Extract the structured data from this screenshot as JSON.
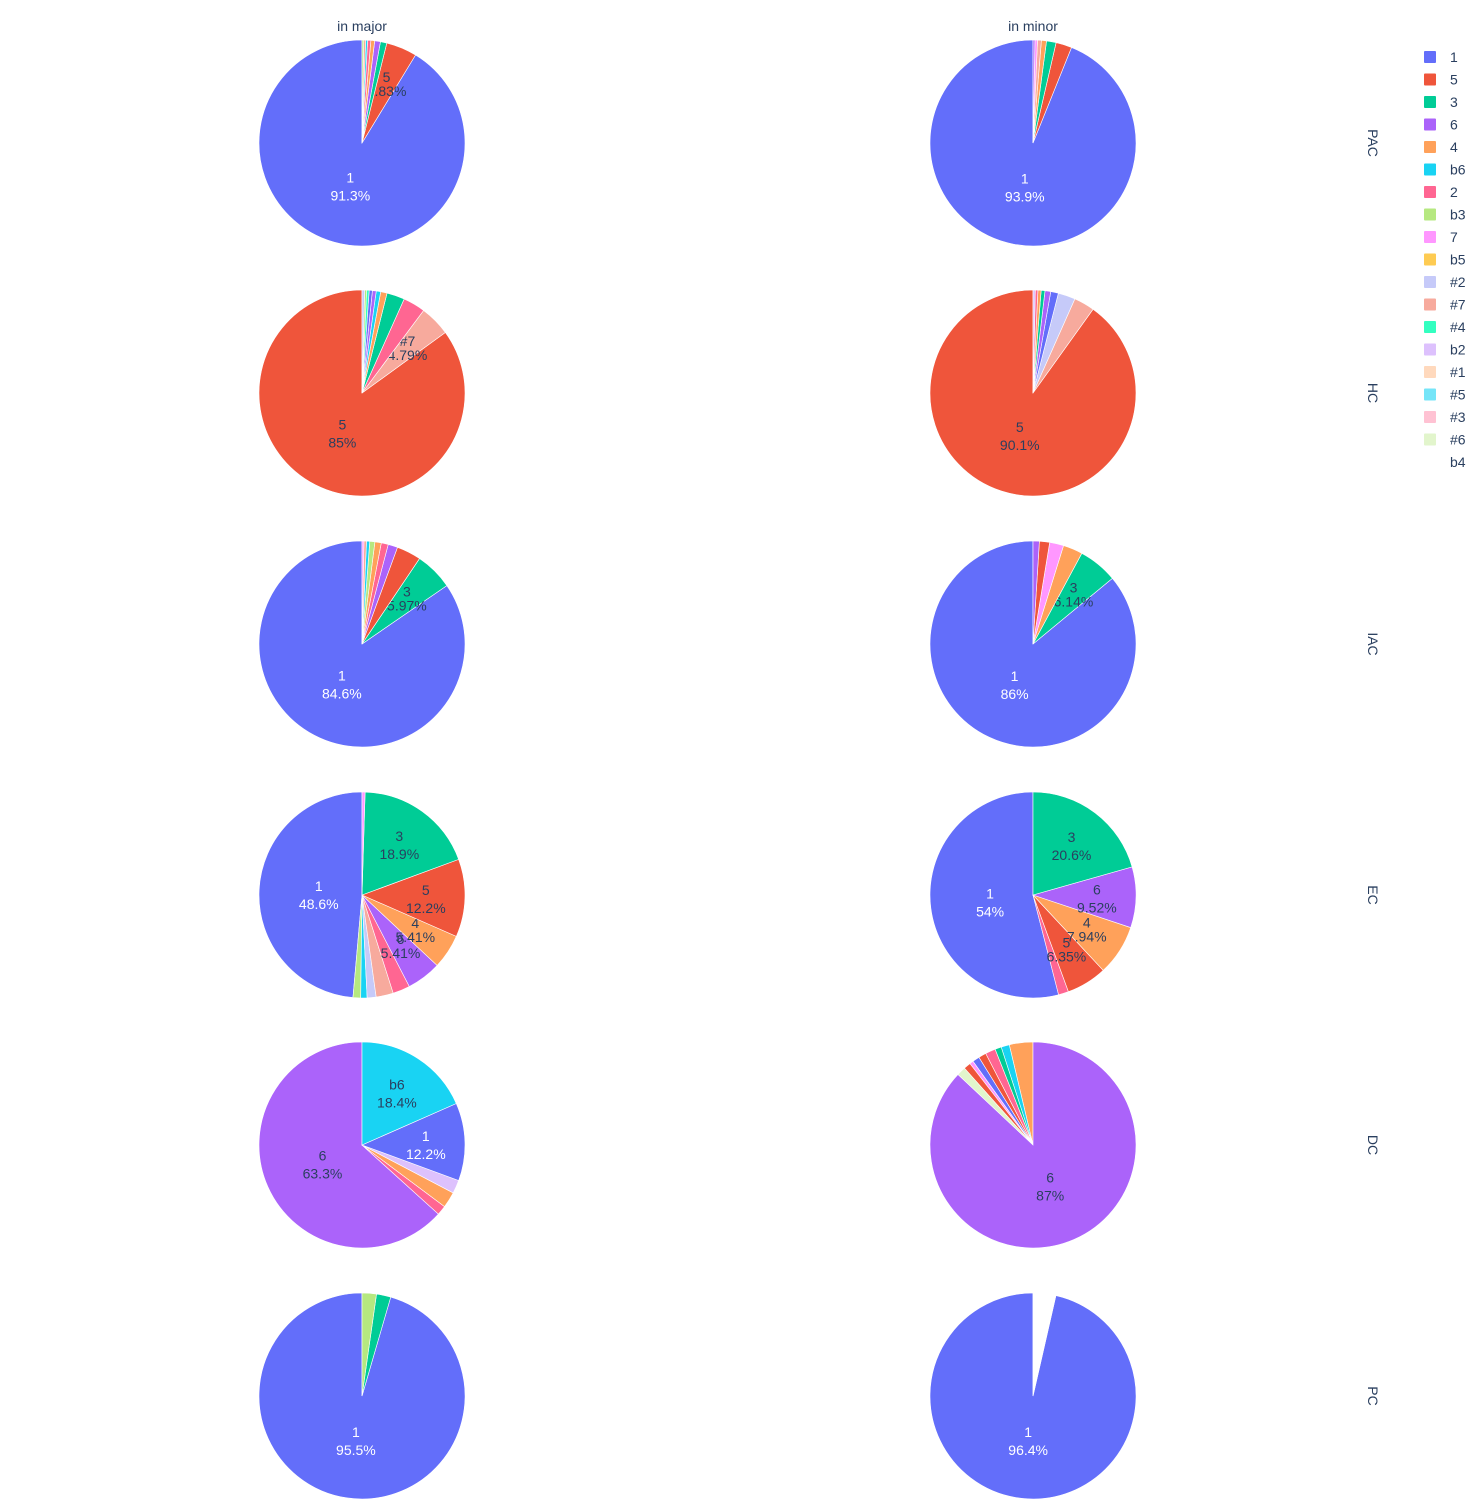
{
  "chart_data": {
    "type": "pie",
    "column_titles": [
      "in major",
      "in minor"
    ],
    "row_titles": [
      "PAC",
      "HC",
      "IAC",
      "EC",
      "DC",
      "PC"
    ],
    "legend": {
      "placement": "top-right",
      "entries": [
        "1",
        "5",
        "3",
        "6",
        "4",
        "b6",
        "2",
        "b3",
        "7",
        "b5",
        "#2",
        "#7",
        "#4",
        "b2",
        "#1",
        "#5",
        "#3",
        "#6",
        "b4"
      ]
    },
    "colors": {
      "1": "#636efa",
      "5": "#EF553B",
      "3": "#00cc96",
      "6": "#ab63fa",
      "4": "#FFA15A",
      "b6": "#19d3f3",
      "2": "#FF6692",
      "b3": "#B6E880",
      "7": "#FF97FF",
      "b5": "#FECB52",
      "#2": "#c6caf9",
      "#7": "#f7aa9d",
      "#4": "#33ffc0",
      "b2": "#ddc1fd",
      "#1": "#ffd9bd",
      "#5": "#75e5f8",
      "#3": "#ffc2d3",
      "#6": "#e2f5cc",
      "b4": "#ffffff"
    },
    "pies": [
      {
        "row": "PAC",
        "column": "in major",
        "slices": [
          {
            "label": "1",
            "percent": 91.3
          },
          {
            "label": "5",
            "percent": 4.83
          },
          {
            "label": "3",
            "percent": 1.0
          },
          {
            "label": "6",
            "percent": 0.9
          },
          {
            "label": "4",
            "percent": 0.6
          },
          {
            "label": "2",
            "percent": 0.5
          },
          {
            "label": "b6",
            "percent": 0.3
          },
          {
            "label": "#7",
            "percent": 0.3
          },
          {
            "label": "b3",
            "percent": 0.27
          }
        ]
      },
      {
        "row": "PAC",
        "column": "in minor",
        "slices": [
          {
            "label": "1",
            "percent": 93.9
          },
          {
            "label": "5",
            "percent": 2.5
          },
          {
            "label": "3",
            "percent": 1.5
          },
          {
            "label": "4",
            "percent": 0.8
          },
          {
            "label": "#7",
            "percent": 0.6
          },
          {
            "label": "7",
            "percent": 0.4
          },
          {
            "label": "6",
            "percent": 0.3
          }
        ]
      },
      {
        "row": "HC",
        "column": "in major",
        "slices": [
          {
            "label": "5",
            "percent": 85
          },
          {
            "label": "#7",
            "percent": 4.79
          },
          {
            "label": "2",
            "percent": 3.5
          },
          {
            "label": "3",
            "percent": 2.8
          },
          {
            "label": "4",
            "percent": 1.0
          },
          {
            "label": "b6",
            "percent": 0.7
          },
          {
            "label": "6",
            "percent": 0.6
          },
          {
            "label": "1",
            "percent": 0.5
          },
          {
            "label": "#4",
            "percent": 0.4
          },
          {
            "label": "b3",
            "percent": 0.3
          },
          {
            "label": "#2",
            "percent": 0.41
          }
        ]
      },
      {
        "row": "HC",
        "column": "in minor",
        "slices": [
          {
            "label": "5",
            "percent": 90.1
          },
          {
            "label": "#7",
            "percent": 3.24
          },
          {
            "label": "#2",
            "percent": 2.7
          },
          {
            "label": "1",
            "percent": 1.2
          },
          {
            "label": "6",
            "percent": 0.9
          },
          {
            "label": "3",
            "percent": 0.6
          },
          {
            "label": "4",
            "percent": 0.5
          },
          {
            "label": "2",
            "percent": 0.4
          },
          {
            "label": "b2",
            "percent": 0.36
          }
        ]
      },
      {
        "row": "IAC",
        "column": "in major",
        "slices": [
          {
            "label": "1",
            "percent": 84.6
          },
          {
            "label": "3",
            "percent": 5.97
          },
          {
            "label": "5",
            "percent": 3.83
          },
          {
            "label": "6",
            "percent": 1.5
          },
          {
            "label": "2",
            "percent": 1.1
          },
          {
            "label": "4",
            "percent": 1.0
          },
          {
            "label": "b3",
            "percent": 0.8
          },
          {
            "label": "b6",
            "percent": 0.5
          },
          {
            "label": "#7",
            "percent": 0.4
          },
          {
            "label": "7",
            "percent": 0.3
          }
        ]
      },
      {
        "row": "IAC",
        "column": "in minor",
        "slices": [
          {
            "label": "1",
            "percent": 86
          },
          {
            "label": "3",
            "percent": 6.14
          },
          {
            "label": "4",
            "percent": 3.07
          },
          {
            "label": "7",
            "percent": 2.2
          },
          {
            "label": "5",
            "percent": 1.6
          },
          {
            "label": "6",
            "percent": 0.99
          }
        ]
      },
      {
        "row": "EC",
        "column": "in major",
        "slices": [
          {
            "label": "1",
            "percent": 48.6
          },
          {
            "label": "b3",
            "percent": 1.2
          },
          {
            "label": "b6",
            "percent": 1.0
          },
          {
            "label": "#2",
            "percent": 1.4
          },
          {
            "label": "#7",
            "percent": 2.7
          },
          {
            "label": "2",
            "percent": 2.7
          },
          {
            "label": "6",
            "percent": 5.41
          },
          {
            "label": "4",
            "percent": 5.41
          },
          {
            "label": "5",
            "percent": 12.2
          },
          {
            "label": "3",
            "percent": 18.9
          },
          {
            "label": "7",
            "percent": 0.48
          }
        ]
      },
      {
        "row": "EC",
        "column": "in minor",
        "slices": [
          {
            "label": "1",
            "percent": 54
          },
          {
            "label": "2",
            "percent": 1.59
          },
          {
            "label": "5",
            "percent": 6.35
          },
          {
            "label": "4",
            "percent": 7.94
          },
          {
            "label": "6",
            "percent": 9.52
          },
          {
            "label": "3",
            "percent": 20.6
          }
        ]
      },
      {
        "row": "DC",
        "column": "in major",
        "slices": [
          {
            "label": "6",
            "percent": 63.3
          },
          {
            "label": "2",
            "percent": 1.5
          },
          {
            "label": "4",
            "percent": 2.5
          },
          {
            "label": "b2",
            "percent": 2.1
          },
          {
            "label": "1",
            "percent": 12.2
          },
          {
            "label": "b6",
            "percent": 18.4
          }
        ]
      },
      {
        "row": "DC",
        "column": "in minor",
        "slices": [
          {
            "label": "4",
            "percent": 3.7
          },
          {
            "label": "b6",
            "percent": 1.3
          },
          {
            "label": "3",
            "percent": 1.0
          },
          {
            "label": "2",
            "percent": 1.6
          },
          {
            "label": "5",
            "percent": 1.2
          },
          {
            "label": "1",
            "percent": 1.1
          },
          {
            "label": "7",
            "percent": 0.6
          },
          {
            "label": "5",
            "percent": 1.1
          },
          {
            "label": "#6",
            "percent": 1.4
          },
          {
            "label": "6",
            "percent": 87
          }
        ]
      },
      {
        "row": "PC",
        "column": "in major",
        "slices": [
          {
            "label": "1",
            "percent": 95.5
          },
          {
            "label": "3",
            "percent": 2.25
          },
          {
            "label": "b3",
            "percent": 2.25
          }
        ]
      },
      {
        "row": "PC",
        "column": "in minor",
        "slices": [
          {
            "label": "1",
            "percent": 96.4
          },
          {
            "label": "b4",
            "percent": 3.57
          }
        ]
      }
    ]
  }
}
